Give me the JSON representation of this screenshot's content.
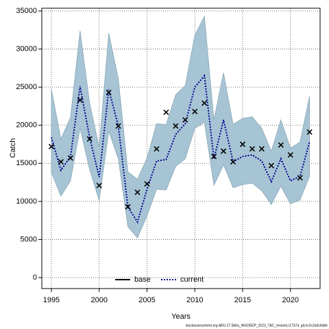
{
  "chart_data": {
    "type": "line",
    "x_label": "Years",
    "y_label": "Catch",
    "footer": "stockassessment.org ARU.27.5b6a_WGDEEP_2023_TAC_revised,r17374, git:ec2c2a0c6dde",
    "x": [
      1995,
      1996,
      1997,
      1998,
      1999,
      2000,
      2001,
      2002,
      2003,
      2004,
      2005,
      2006,
      2007,
      2008,
      2009,
      2010,
      2011,
      2012,
      2013,
      2014,
      2015,
      2016,
      2017,
      2018,
      2019,
      2020,
      2021,
      2022
    ],
    "observed": [
      17200,
      15200,
      15700,
      23300,
      18200,
      12100,
      24300,
      19900,
      9300,
      11200,
      12300,
      16900,
      21700,
      19900,
      20700,
      21800,
      22900,
      15900,
      16600,
      15200,
      17500,
      16900,
      16900,
      14700,
      17400,
      16100,
      13100,
      19100
    ],
    "band_upper": [
      24700,
      18200,
      21000,
      32400,
      22900,
      17100,
      32100,
      26100,
      13900,
      12900,
      15700,
      20200,
      20100,
      24000,
      25200,
      31800,
      34300,
      20700,
      26900,
      20100,
      20900,
      21100,
      19600,
      16600,
      20700,
      17000,
      17800,
      23800
    ],
    "band_lower": [
      13800,
      10700,
      12700,
      19600,
      14200,
      10100,
      19200,
      15600,
      6700,
      5200,
      8100,
      11600,
      11500,
      14600,
      15600,
      19600,
      20400,
      12100,
      14800,
      11800,
      12200,
      12400,
      11400,
      9600,
      12000,
      9700,
      10200,
      13300
    ],
    "band_color": "#a6c4d4",
    "series": [
      {
        "name": "base",
        "color": "#000000"
      },
      {
        "name": "current",
        "color": "#00008b",
        "values": [
          18400,
          14100,
          15900,
          25100,
          18400,
          13200,
          24700,
          19900,
          9300,
          7300,
          11600,
          15300,
          15500,
          18800,
          20200,
          25000,
          26500,
          15600,
          20700,
          15200,
          15900,
          16100,
          15300,
          12600,
          15600,
          12700,
          13300,
          17800
        ]
      }
    ],
    "xlim": [
      1994,
      2023.1
    ],
    "ylim": [
      -1440,
      35360
    ],
    "xticks": [
      1995,
      2000,
      2005,
      2010,
      2015,
      2020
    ],
    "yticks": [
      0,
      5000,
      10000,
      15000,
      20000,
      25000,
      30000,
      35000
    ],
    "grid": true,
    "legend": "bottom"
  }
}
